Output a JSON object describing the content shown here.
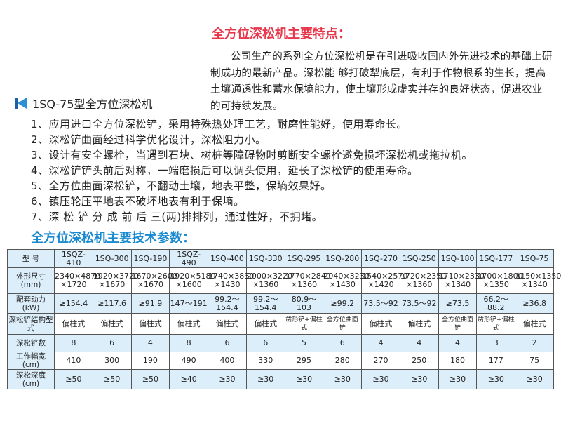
{
  "title": "全方位深松机主要特点：",
  "intro": "公司生产的系列全方位深松机是在引进吸收国内外先进技术的基础上研制成功的最新产品。深松能 够打破犁底层，有利于作物根系的生长，提高土壤通透性和蓄水保墒能力，使土壤形成虚实并存的良好状态，促进农业的可持续发展。",
  "subheading": "1SQ-75型全方位深松机",
  "features": [
    "1、应用进口全方位深松铲，采用特殊热处理工艺，耐磨性能好，使用寿命长。",
    "2、深松铲曲面经过科学优化设计，深松阻力小。",
    "3、设计有安全螺栓，当遇到石块、树桩等障碍物时剪断安全螺栓避免损坏深松机或拖拉机。",
    "4、深松铲铲头前后对称，一端磨损后可以调头使用，延长了深松铲的使用寿命。",
    "5、全方位曲面深松铲，不翻动土壤，地表平整，保墒效果好。",
    "6、镇压轮压平地表不破坏地表有利于保墒。",
    "7、深 松 铲 分 成 前 后 三(两)排排列，通过性好，不拥堵。"
  ],
  "table_title": "全方位深松机主要技术参数：",
  "table": {
    "rows": [
      {
        "label": "型 号",
        "values": [
          "1SQZ-410",
          "1SQ-300",
          "1SQ-190",
          "1SQZ-490",
          "1SQ-400",
          "1SQ-330",
          "1SQ-295",
          "1SQ-280",
          "1SQ-270",
          "1SQ-250",
          "1SQ-180",
          "1SQ-177",
          "1SQ-75"
        ]
      },
      {
        "label": "外形尺寸(mm)",
        "values": [
          "2340×4870 ×1720",
          "1920×3720 ×1670",
          "1670×2600 ×1670",
          "1920×5180 ×1600",
          "1740×3830 ×1430",
          "2000×3220 ×1360",
          "1770×2840 ×1360",
          "2040×3230 ×1430",
          "1540×2570 ×1420",
          "1720×2350 ×1360",
          "1710×2330 ×1340",
          "1700×1800 ×1350",
          "1150×1350 ×1340"
        ]
      },
      {
        "label": "配套动力(kW)",
        "values": [
          "≥154.4",
          "≥117.6",
          "≥91.9",
          "147～191",
          "99.2～154.4",
          "99.2～154.4",
          "80.9～103",
          "≥99.2",
          "73.5～92",
          "73.5～92",
          "≥73.5",
          "66.2～88.2",
          "≥36.8"
        ]
      },
      {
        "label": "深松铲结构型式",
        "values": [
          "偏柱式",
          "偏柱式",
          "偏柱式",
          "偏柱式",
          "偏柱式",
          "偏柱式",
          "凿形铲+偏柱式",
          "全方位曲面铲",
          "偏柱式",
          "偏柱式",
          "全方位曲面铲",
          "凿形铲+偏柱式",
          "偏柱式"
        ]
      },
      {
        "label": "深松铲数",
        "values": [
          "8",
          "6",
          "4",
          "8",
          "6",
          "6",
          "5",
          "6",
          "4",
          "4",
          "4",
          "3",
          "2"
        ]
      },
      {
        "label": "工作幅宽(cm)",
        "values": [
          "410",
          "300",
          "190",
          "490",
          "400",
          "330",
          "295",
          "280",
          "270",
          "250",
          "180",
          "177",
          "75"
        ]
      },
      {
        "label": "深松深度(cm)",
        "values": [
          "≥50",
          "≥50",
          "≥50",
          "≥40",
          "≥30",
          "≥30",
          "≥30",
          "≥30",
          "≥30",
          "≥30",
          "≥30",
          "≥30",
          "≥30"
        ]
      }
    ]
  },
  "colors": {
    "title": "#e8374a",
    "heading": "#1a8ad0",
    "cell_shade": "#dceefa"
  }
}
